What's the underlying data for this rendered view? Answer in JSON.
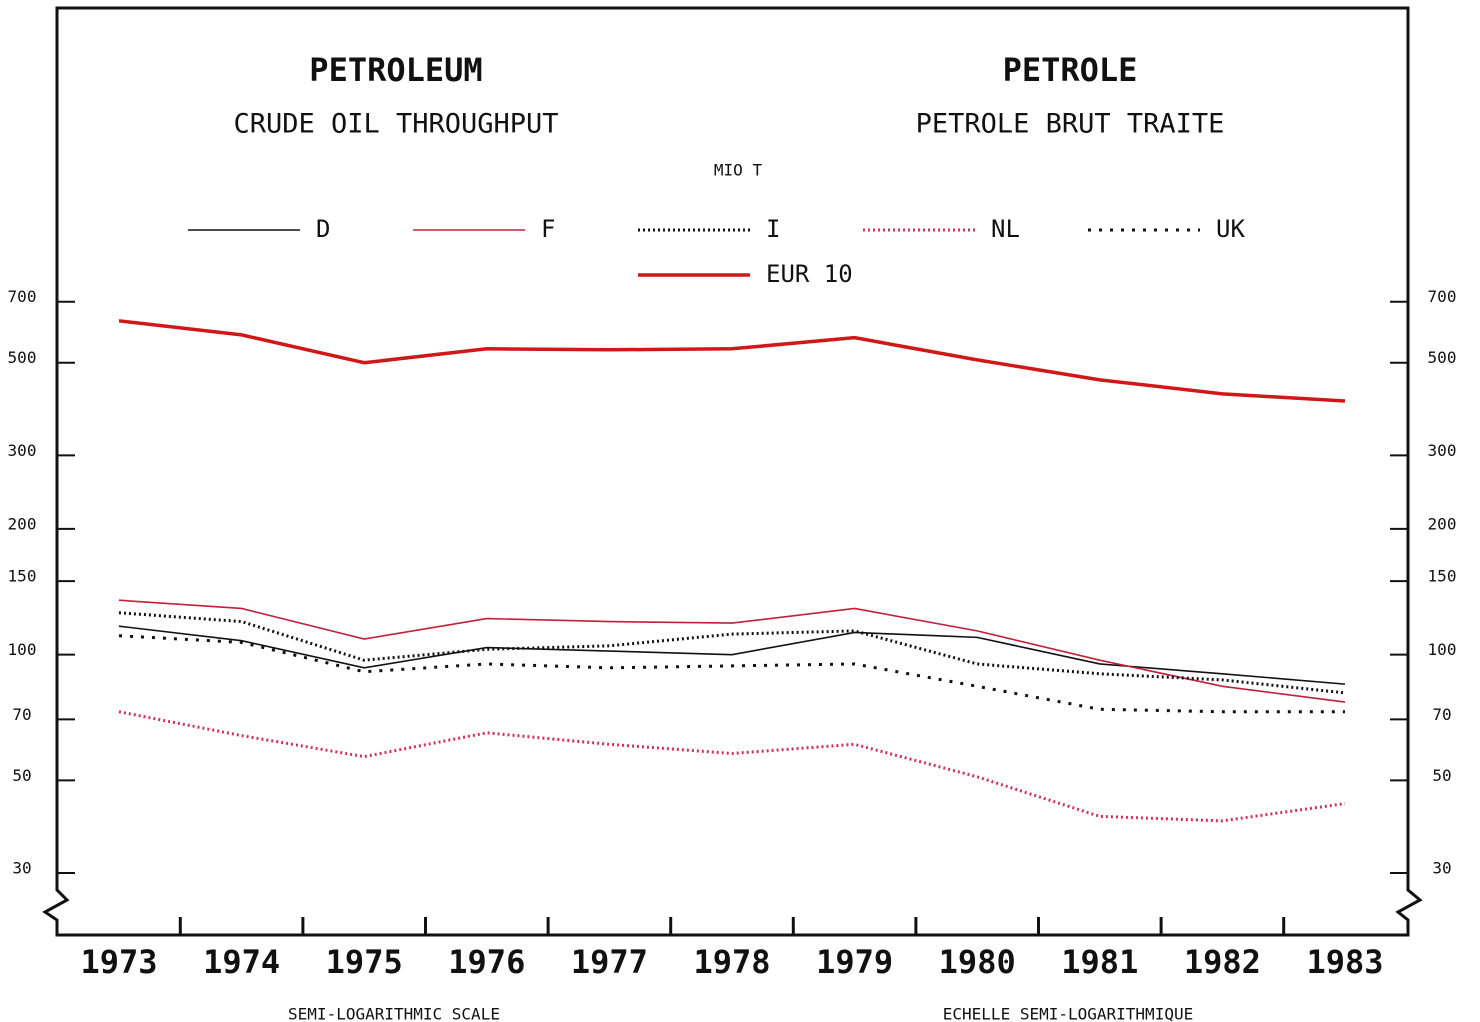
{
  "chart_data": {
    "type": "line",
    "title": "PETROLEUM",
    "subtitle": "CRUDE OIL THROUGHPUT",
    "title_fr": "PETROLE",
    "subtitle_fr": "PETROLE BRUT TRAITE",
    "ylabel": "MIO T",
    "footnote": "SEMI-LOGARITHMIC SCALE",
    "footnote_fr": "ECHELLE SEMI-LOGARITHMIQUE",
    "categories": [
      "1973",
      "1974",
      "1975",
      "1976",
      "1977",
      "1978",
      "1979",
      "1980",
      "1981",
      "1982",
      "1983"
    ],
    "log_scale": true,
    "ylim": [
      26,
      1000
    ],
    "yticks": [
      30,
      50,
      70,
      100,
      150,
      200,
      300,
      500,
      700
    ],
    "series": [
      {
        "name": "D",
        "color": "#111111",
        "style": "solid",
        "values": [
          117,
          108,
          93,
          104,
          102,
          100,
          113,
          110,
          95,
          90,
          85
        ]
      },
      {
        "name": "F",
        "color": "#c0203a",
        "style": "solid",
        "values": [
          135,
          129,
          109,
          122,
          120,
          119,
          129,
          114,
          97,
          84,
          77
        ]
      },
      {
        "name": "I",
        "color": "#111111",
        "style": "dotted",
        "values": [
          126,
          120,
          97,
          103,
          105,
          112,
          114,
          95,
          90,
          87,
          81
        ]
      },
      {
        "name": "NL",
        "color": "#d0305a",
        "style": "dotted",
        "values": [
          73,
          64,
          57,
          65,
          61,
          58,
          61,
          51,
          41,
          40,
          44
        ]
      },
      {
        "name": "UK",
        "color": "#111111",
        "style": "dashed",
        "values": [
          111,
          107,
          91,
          95,
          93,
          94,
          95,
          84,
          74,
          73,
          73
        ]
      },
      {
        "name": "EUR 10",
        "color": "#d01818",
        "style": "bold",
        "values": [
          630,
          583,
          500,
          540,
          537,
          540,
          574,
          508,
          455,
          421,
          405
        ]
      }
    ]
  }
}
